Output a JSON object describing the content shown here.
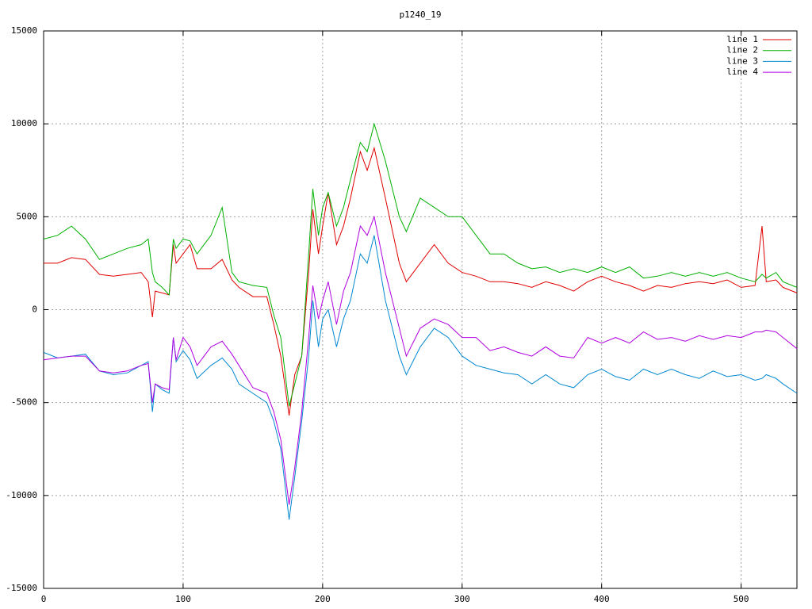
{
  "chart_data": {
    "type": "line",
    "title": "p1240_19",
    "x": [
      0,
      10,
      20,
      30,
      40,
      50,
      60,
      70,
      75,
      78,
      80,
      85,
      90,
      93,
      95,
      100,
      105,
      110,
      120,
      128,
      135,
      140,
      150,
      160,
      165,
      170,
      176,
      180,
      185,
      190,
      193,
      197,
      200,
      204,
      210,
      215,
      220,
      227,
      232,
      237,
      245,
      255,
      260,
      270,
      280,
      290,
      300,
      310,
      320,
      330,
      340,
      350,
      360,
      370,
      380,
      390,
      400,
      410,
      420,
      430,
      440,
      450,
      460,
      470,
      480,
      490,
      500,
      510,
      515,
      518,
      525,
      530,
      540
    ],
    "series": [
      {
        "name": "line 1",
        "color": "#e00000",
        "values": [
          2500,
          2500,
          2800,
          2700,
          1900,
          1800,
          1900,
          2000,
          1500,
          -400,
          1000,
          900,
          800,
          3500,
          2500,
          3000,
          3500,
          2200,
          2200,
          2700,
          1600,
          1200,
          700,
          700,
          -800,
          -2500,
          -5700,
          -3500,
          -2500,
          2000,
          5400,
          3000,
          4500,
          6300,
          3500,
          4500,
          6000,
          8500,
          7500,
          8700,
          6000,
          2500,
          1500,
          2500,
          3500,
          2500,
          2000,
          1800,
          1500,
          1500,
          1400,
          1200,
          1500,
          1300,
          1000,
          1500,
          1800,
          1500,
          1300,
          1000,
          1300,
          1200,
          1400,
          1500,
          1400,
          1600,
          1200,
          1300,
          4500,
          1500,
          1600,
          1200,
          900
        ]
      },
      {
        "name": "line 2",
        "color": "#00b000",
        "values": [
          3800,
          4000,
          4500,
          3800,
          2700,
          3000,
          3300,
          3500,
          3800,
          2000,
          1500,
          1200,
          800,
          3800,
          3300,
          3800,
          3700,
          3000,
          4000,
          5500,
          2000,
          1500,
          1300,
          1200,
          -300,
          -1500,
          -5200,
          -4000,
          -2500,
          3000,
          6500,
          4000,
          5500,
          6300,
          4500,
          5500,
          7000,
          9000,
          8500,
          10000,
          8000,
          5000,
          4200,
          6000,
          5500,
          5000,
          5000,
          4000,
          3000,
          3000,
          2500,
          2200,
          2300,
          2000,
          2200,
          2000,
          2300,
          2000,
          2300,
          1700,
          1800,
          2000,
          1800,
          2000,
          1800,
          2000,
          1700,
          1500,
          1900,
          1700,
          2000,
          1500,
          1200
        ]
      },
      {
        "name": "line 3",
        "color": "#0088d0",
        "values": [
          -2300,
          -2600,
          -2500,
          -2400,
          -3300,
          -3500,
          -3400,
          -3000,
          -2800,
          -5500,
          -4000,
          -4300,
          -4500,
          -1500,
          -2800,
          -2200,
          -2700,
          -3700,
          -3000,
          -2600,
          -3200,
          -4000,
          -4500,
          -5000,
          -6000,
          -7500,
          -11300,
          -9000,
          -6000,
          -2500,
          500,
          -2000,
          -500,
          0,
          -2000,
          -500,
          500,
          3000,
          2500,
          4000,
          500,
          -2500,
          -3500,
          -2000,
          -1000,
          -1500,
          -2500,
          -3000,
          -3200,
          -3400,
          -3500,
          -4000,
          -3500,
          -4000,
          -4200,
          -3500,
          -3200,
          -3600,
          -3800,
          -3200,
          -3500,
          -3200,
          -3500,
          -3700,
          -3300,
          -3600,
          -3500,
          -3800,
          -3700,
          -3500,
          -3700,
          -4000,
          -4500
        ]
      },
      {
        "name": "line 4",
        "color": "#b000e0",
        "values": [
          -2700,
          -2600,
          -2500,
          -2500,
          -3300,
          -3400,
          -3300,
          -3000,
          -2900,
          -5000,
          -4000,
          -4200,
          -4300,
          -1500,
          -2700,
          -1500,
          -2000,
          -3000,
          -2000,
          -1700,
          -2400,
          -3000,
          -4200,
          -4500,
          -5500,
          -7000,
          -10500,
          -8500,
          -5500,
          -1500,
          1300,
          -500,
          500,
          1500,
          -800,
          1000,
          2000,
          4500,
          4000,
          5000,
          2000,
          -1000,
          -2500,
          -1000,
          -500,
          -800,
          -1500,
          -1500,
          -2200,
          -2000,
          -2300,
          -2500,
          -2000,
          -2500,
          -2600,
          -1500,
          -1800,
          -1500,
          -1800,
          -1200,
          -1600,
          -1500,
          -1700,
          -1400,
          -1600,
          -1400,
          -1500,
          -1200,
          -1200,
          -1100,
          -1200,
          -1500,
          -2100
        ]
      }
    ],
    "xlim": [
      0,
      540
    ],
    "xticks": [
      0,
      100,
      200,
      300,
      400,
      500
    ],
    "ylim": [
      -15000,
      15000
    ],
    "yticks": [
      -15000,
      -10000,
      -5000,
      0,
      5000,
      10000,
      15000
    ],
    "grid": true,
    "legend": "top-right"
  }
}
